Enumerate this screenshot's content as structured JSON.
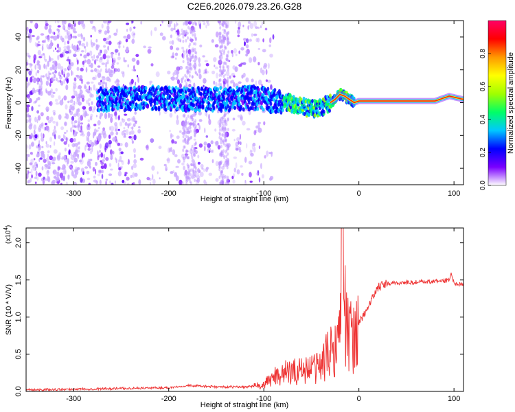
{
  "title": "C2E6.2026.079.23.26.G28",
  "chart_data": [
    {
      "type": "heatmap",
      "name": "spectrogram",
      "xlabel": "Height of straight line (km)",
      "ylabel": "Frequency (Hz)",
      "xlim": [
        -350,
        110
      ],
      "ylim": [
        -50,
        50
      ],
      "xticks": [
        -300,
        -200,
        -100,
        0,
        100
      ],
      "yticks": [
        -40,
        -20,
        0,
        20,
        40
      ],
      "xtick_labels": [
        "-300",
        "-200",
        "-100",
        "0",
        "100"
      ],
      "ytick_labels": [
        "-40",
        "-20",
        "0",
        "20",
        "40"
      ],
      "ridge": {
        "x": [
          -260,
          -220,
          -180,
          -140,
          -110,
          -90,
          -75,
          -60,
          -50,
          -40,
          -30,
          -25,
          -20,
          -15,
          -10,
          -5,
          0,
          40,
          80,
          95,
          110
        ],
        "y": [
          2,
          3,
          2,
          2,
          3,
          1,
          0,
          -2,
          -4,
          -3,
          0,
          2,
          5,
          4,
          2,
          0,
          1,
          1,
          1,
          4,
          2
        ]
      },
      "colorbar": {
        "label": "Normalized spectral amplitude",
        "range": [
          0,
          1
        ],
        "ticks": [
          0.0,
          0.2,
          0.4,
          0.6,
          0.8
        ],
        "tick_labels": [
          "0.0",
          "0.2",
          "0.4",
          "0.6",
          "0.8"
        ],
        "colors": [
          "#ffffff",
          "#7a00ff",
          "#0000ff",
          "#00c8ff",
          "#00ff66",
          "#a0ff00",
          "#ffff00",
          "#ff9900",
          "#ff0000",
          "#ff0066"
        ]
      },
      "grid": false
    },
    {
      "type": "line",
      "name": "snr",
      "xlabel": "Height of straight line (km)",
      "ylabel": "SNR (10 * V/V)",
      "y_multiplier": "(x10",
      "y_multiplier_exp": "4",
      "y_multiplier_close": ")",
      "xlim": [
        -350,
        110
      ],
      "ylim": [
        0,
        2.2
      ],
      "xticks": [
        -300,
        -200,
        -100,
        0,
        100
      ],
      "yticks": [
        0.0,
        0.5,
        1.0,
        1.5,
        2.0
      ],
      "xtick_labels": [
        "-300",
        "-200",
        "-100",
        "0",
        "100"
      ],
      "ytick_labels": [
        "0.0",
        "0.5",
        "1.0",
        "1.5",
        "2.0"
      ],
      "series": [
        {
          "name": "SNR",
          "color": "#ee3333",
          "x": [
            -350,
            -300,
            -250,
            -200,
            -180,
            -150,
            -120,
            -100,
            -90,
            -80,
            -70,
            -60,
            -50,
            -40,
            -35,
            -30,
            -25,
            -20,
            -18,
            -15,
            -10,
            -5,
            0,
            10,
            20,
            30,
            40,
            60,
            80,
            95,
            97,
            100,
            110
          ],
          "y": [
            0.02,
            0.03,
            0.04,
            0.05,
            0.08,
            0.06,
            0.06,
            0.08,
            0.2,
            0.25,
            0.25,
            0.3,
            0.3,
            0.35,
            0.45,
            0.55,
            0.6,
            0.8,
            1.5,
            1.1,
            0.7,
            0.8,
            0.9,
            1.15,
            1.4,
            1.45,
            1.46,
            1.47,
            1.48,
            1.5,
            1.6,
            1.45,
            1.45
          ]
        }
      ],
      "grid": false
    }
  ]
}
